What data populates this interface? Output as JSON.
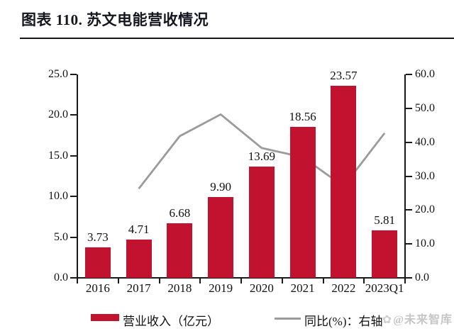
{
  "header": {
    "title": "图表 110. 苏文电能营收情况"
  },
  "chart_data": {
    "type": "combo",
    "subtype": "bar+line",
    "title": "苏文电能营收情况",
    "categories": [
      "2016",
      "2017",
      "2018",
      "2019",
      "2020",
      "2021",
      "2022",
      "2023Q1"
    ],
    "series": [
      {
        "name": "营业收入（亿元）",
        "type": "bar",
        "axis": "left",
        "color": "#C1122F",
        "values": [
          3.73,
          4.71,
          6.68,
          9.9,
          13.69,
          18.56,
          23.57,
          5.81
        ],
        "labels": [
          "3.73",
          "4.71",
          "6.68",
          "9.90",
          "13.69",
          "18.56",
          "23.57",
          "5.81"
        ]
      },
      {
        "name": "同比(%)：右轴",
        "type": "line",
        "axis": "right",
        "color": "#9B9B9B",
        "values": [
          null,
          26.3,
          41.8,
          48.2,
          38.3,
          35.6,
          27.0,
          42.7
        ]
      }
    ],
    "axes": {
      "left": {
        "min": 0,
        "max": 25,
        "ticks": [
          "0.0",
          "5.0",
          "10.0",
          "15.0",
          "20.0",
          "25.0"
        ]
      },
      "right": {
        "min": 0,
        "max": 60,
        "ticks": [
          "0.0",
          "10.0",
          "20.0",
          "30.0",
          "40.0",
          "50.0",
          "60.0"
        ]
      }
    },
    "grid": false,
    "legend_position": "bottom"
  },
  "watermark": {
    "text": "@未来智库",
    "icon": "flower-logo"
  }
}
